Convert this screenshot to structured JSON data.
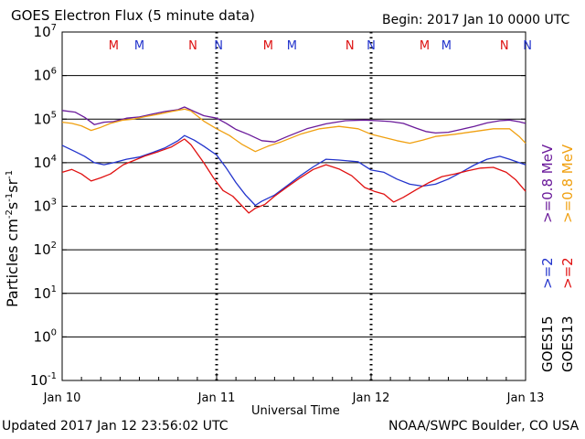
{
  "header": {
    "title": "GOES Electron Flux (5 minute data)",
    "begin": "Begin: 2017 Jan 10 0000 UTC"
  },
  "footer": {
    "updated": "Updated 2017 Jan 12 23:56:02 UTC",
    "credit": "NOAA/SWPC Boulder, CO USA"
  },
  "axes": {
    "ylabel_main": "Particles cm",
    "ylabel_exp1": "-2",
    "ylabel_mid1": "s",
    "ylabel_exp2": "-1",
    "ylabel_mid2": "sr",
    "ylabel_exp3": "-1",
    "xlabel": "Universal Time"
  },
  "right_labels": {
    "goes15": "GOES15",
    "goes13": "GOES13",
    "ge2_15": ">=2",
    "ge2_13": ">=2",
    "ge08_15": ">=0.8  MeV",
    "ge08_13": ">=0.8  MeV"
  },
  "colors": {
    "goes15_ge2": "#2233cc",
    "goes13_ge2": "#e01010",
    "goes15_ge08": "#6a1a9a",
    "goes13_ge08": "#f0a010",
    "marker_M": "#dd1111",
    "marker_N": "#2233cc"
  },
  "chart_data": {
    "type": "line",
    "title": "GOES Electron Flux (5 minute data)",
    "xlabel": "Universal Time",
    "ylabel": "Particles cm-2 s-1 sr-1",
    "x_unit": "hours since 2017 Jan 10 0000 UTC",
    "xlim": [
      0,
      72
    ],
    "ylim": [
      0.1,
      10000000
    ],
    "y_scale": "log",
    "x_ticks": [
      {
        "x": 0,
        "label": "Jan 10"
      },
      {
        "x": 24,
        "label": "Jan 11"
      },
      {
        "x": 48,
        "label": "Jan 12"
      },
      {
        "x": 72,
        "label": "Jan 13"
      }
    ],
    "y_ticks": [
      {
        "v": 0.1,
        "base": "10",
        "exp": "-1"
      },
      {
        "v": 1,
        "base": "10",
        "exp": "0"
      },
      {
        "v": 10,
        "base": "10",
        "exp": "1"
      },
      {
        "v": 100,
        "base": "10",
        "exp": "2"
      },
      {
        "v": 1000,
        "base": "10",
        "exp": "3"
      },
      {
        "v": 10000,
        "base": "10",
        "exp": "4"
      },
      {
        "v": 100000,
        "base": "10",
        "exp": "5"
      },
      {
        "v": 1000000,
        "base": "10",
        "exp": "6"
      },
      {
        "v": 10000000,
        "base": "10",
        "exp": "7"
      }
    ],
    "threshold": 1000,
    "markers": [
      {
        "x": 8.0,
        "label": "M",
        "sat": "M"
      },
      {
        "x": 12.0,
        "label": "M",
        "sat": "N"
      },
      {
        "x": 20.3,
        "label": "N",
        "sat": "M"
      },
      {
        "x": 24.3,
        "label": "N",
        "sat": "N"
      },
      {
        "x": 32.0,
        "label": "M",
        "sat": "M"
      },
      {
        "x": 35.7,
        "label": "M",
        "sat": "N"
      },
      {
        "x": 44.7,
        "label": "N",
        "sat": "M"
      },
      {
        "x": 48.0,
        "label": "N",
        "sat": "N"
      },
      {
        "x": 56.3,
        "label": "M",
        "sat": "M"
      },
      {
        "x": 59.7,
        "label": "M",
        "sat": "N"
      },
      {
        "x": 68.7,
        "label": "N",
        "sat": "M"
      },
      {
        "x": 72.3,
        "label": "N",
        "sat": "N"
      }
    ],
    "series": [
      {
        "name": "GOES15 >=0.8 MeV",
        "color": "#6a1a9a",
        "points": [
          [
            0,
            158000
          ],
          [
            2,
            145000
          ],
          [
            3.5,
            110000
          ],
          [
            5,
            75000
          ],
          [
            6.5,
            85000
          ],
          [
            8,
            88000
          ],
          [
            10,
            105000
          ],
          [
            12,
            112000
          ],
          [
            14,
            130000
          ],
          [
            16,
            150000
          ],
          [
            18,
            165000
          ],
          [
            19,
            190000
          ],
          [
            20.5,
            150000
          ],
          [
            22,
            120000
          ],
          [
            24,
            105000
          ],
          [
            25.5,
            80000
          ],
          [
            27,
            58000
          ],
          [
            29,
            44000
          ],
          [
            31,
            32000
          ],
          [
            33,
            30000
          ],
          [
            35,
            40000
          ],
          [
            38,
            60000
          ],
          [
            41,
            78000
          ],
          [
            44,
            92000
          ],
          [
            47,
            95000
          ],
          [
            49,
            92000
          ],
          [
            51,
            88000
          ],
          [
            53,
            80000
          ],
          [
            55,
            62000
          ],
          [
            56.5,
            52000
          ],
          [
            58,
            48000
          ],
          [
            60,
            50000
          ],
          [
            62,
            58000
          ],
          [
            64,
            68000
          ],
          [
            66,
            82000
          ],
          [
            68,
            92000
          ],
          [
            69.5,
            95000
          ],
          [
            71,
            87000
          ],
          [
            72,
            80000
          ]
        ]
      },
      {
        "name": "GOES13 >=0.8 MeV",
        "color": "#f0a010",
        "points": [
          [
            0,
            85000
          ],
          [
            1.5,
            80000
          ],
          [
            3,
            70000
          ],
          [
            4.5,
            55000
          ],
          [
            6,
            65000
          ],
          [
            7.5,
            80000
          ],
          [
            9.5,
            95000
          ],
          [
            11,
            100000
          ],
          [
            13,
            115000
          ],
          [
            15,
            130000
          ],
          [
            17,
            150000
          ],
          [
            19,
            170000
          ],
          [
            20,
            155000
          ],
          [
            22,
            90000
          ],
          [
            24,
            60000
          ],
          [
            26,
            42000
          ],
          [
            28,
            26000
          ],
          [
            30,
            18000
          ],
          [
            32,
            24000
          ],
          [
            34,
            30000
          ],
          [
            37,
            45000
          ],
          [
            40,
            60000
          ],
          [
            43,
            68000
          ],
          [
            46,
            60000
          ],
          [
            48,
            45000
          ],
          [
            50,
            38000
          ],
          [
            52,
            32000
          ],
          [
            54,
            28000
          ],
          [
            56,
            33000
          ],
          [
            58,
            40000
          ],
          [
            61,
            45000
          ],
          [
            64,
            52000
          ],
          [
            67,
            60000
          ],
          [
            69.5,
            60000
          ],
          [
            71,
            40000
          ],
          [
            72,
            28000
          ]
        ]
      },
      {
        "name": "GOES15 >=2 MeV",
        "color": "#2233cc",
        "points": [
          [
            0,
            25000
          ],
          [
            2,
            18000
          ],
          [
            3.5,
            14000
          ],
          [
            5,
            10000
          ],
          [
            6.5,
            9000
          ],
          [
            8,
            10000
          ],
          [
            10,
            12000
          ],
          [
            12,
            13500
          ],
          [
            14,
            17000
          ],
          [
            16,
            22000
          ],
          [
            18,
            32000
          ],
          [
            19,
            42000
          ],
          [
            20.5,
            33000
          ],
          [
            22,
            24000
          ],
          [
            24,
            15000
          ],
          [
            25.5,
            7500
          ],
          [
            27,
            3500
          ],
          [
            28.5,
            1800
          ],
          [
            30,
            1050
          ],
          [
            31,
            1300
          ],
          [
            33,
            1800
          ],
          [
            35,
            3000
          ],
          [
            37,
            5000
          ],
          [
            39,
            8000
          ],
          [
            41,
            12000
          ],
          [
            43,
            11500
          ],
          [
            46,
            10500
          ],
          [
            48,
            6800
          ],
          [
            50,
            6000
          ],
          [
            52,
            4200
          ],
          [
            54,
            3200
          ],
          [
            56,
            2900
          ],
          [
            58,
            3200
          ],
          [
            60,
            4200
          ],
          [
            62,
            6000
          ],
          [
            64,
            8800
          ],
          [
            66,
            12000
          ],
          [
            68,
            14000
          ],
          [
            69.5,
            12000
          ],
          [
            71,
            10000
          ],
          [
            72,
            9000
          ]
        ]
      },
      {
        "name": "GOES13 >=2 MeV",
        "color": "#e01010",
        "points": [
          [
            0,
            6000
          ],
          [
            1.5,
            7000
          ],
          [
            3,
            5500
          ],
          [
            4.5,
            3800
          ],
          [
            6,
            4500
          ],
          [
            7.5,
            5500
          ],
          [
            9.5,
            9000
          ],
          [
            11,
            11000
          ],
          [
            13,
            14500
          ],
          [
            15,
            18000
          ],
          [
            17,
            23000
          ],
          [
            19,
            35000
          ],
          [
            20,
            26000
          ],
          [
            22,
            10000
          ],
          [
            23.5,
            4500
          ],
          [
            25,
            2300
          ],
          [
            26.5,
            1700
          ],
          [
            28,
            1000
          ],
          [
            29,
            700
          ],
          [
            30,
            900
          ],
          [
            31.5,
            1100
          ],
          [
            33,
            1700
          ],
          [
            35,
            2800
          ],
          [
            37,
            4500
          ],
          [
            39,
            7000
          ],
          [
            41,
            9000
          ],
          [
            43,
            7200
          ],
          [
            45,
            5000
          ],
          [
            47,
            2700
          ],
          [
            48.5,
            2200
          ],
          [
            50,
            1900
          ],
          [
            51.5,
            1250
          ],
          [
            53,
            1600
          ],
          [
            55,
            2400
          ],
          [
            57,
            3500
          ],
          [
            59,
            4800
          ],
          [
            61,
            5500
          ],
          [
            63,
            6500
          ],
          [
            65,
            7500
          ],
          [
            67,
            7800
          ],
          [
            69,
            6000
          ],
          [
            70.5,
            4000
          ],
          [
            72,
            2200
          ]
        ]
      }
    ]
  }
}
